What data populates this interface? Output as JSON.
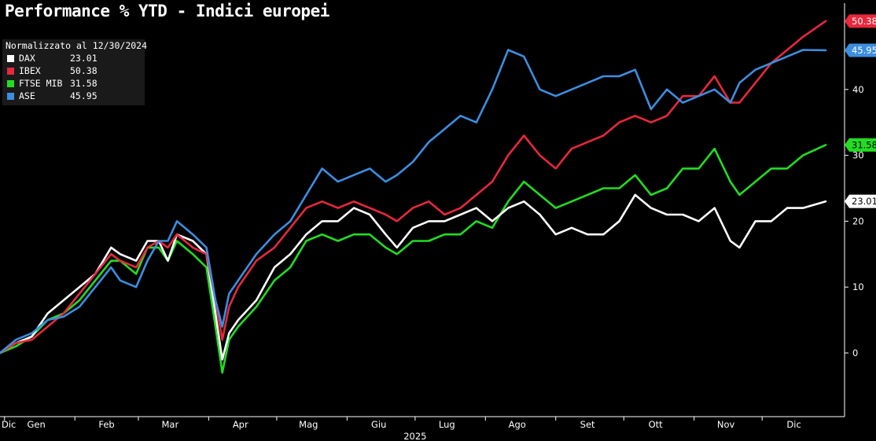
{
  "chart_data": {
    "type": "line",
    "title": "Performance % YTD - Indici europei",
    "note": "Normalizzato al 12/30/2024",
    "x_tick_labels": [
      "Dic",
      "Gen",
      "Feb",
      "Mar",
      "Apr",
      "Mag",
      "Giu",
      "Lug",
      "Ago",
      "Set",
      "Ott",
      "Nov",
      "Dic"
    ],
    "x_year_label": "2025",
    "y_ticks": [
      0,
      10,
      20,
      30,
      40
    ],
    "ylim": [
      -7.5,
      51.5
    ],
    "grid": false,
    "legend_position": "top-left",
    "axis_side": "right",
    "series": [
      {
        "name": "DAX",
        "color": "#ffffff",
        "last": "23.01",
        "points": [
          [
            "2024-12-30",
            0
          ],
          [
            "2025-01-06",
            1.5
          ],
          [
            "2025-01-13",
            2.5
          ],
          [
            "2025-01-20",
            6
          ],
          [
            "2025-01-27",
            8
          ],
          [
            "2025-02-03",
            10
          ],
          [
            "2025-02-10",
            12
          ],
          [
            "2025-02-17",
            16
          ],
          [
            "2025-02-21",
            15
          ],
          [
            "2025-02-28",
            14
          ],
          [
            "2025-03-05",
            17
          ],
          [
            "2025-03-10",
            17
          ],
          [
            "2025-03-14",
            14
          ],
          [
            "2025-03-18",
            18
          ],
          [
            "2025-03-25",
            17
          ],
          [
            "2025-03-31",
            15
          ],
          [
            "2025-04-04",
            6
          ],
          [
            "2025-04-07",
            -1
          ],
          [
            "2025-04-10",
            3
          ],
          [
            "2025-04-14",
            5
          ],
          [
            "2025-04-22",
            8
          ],
          [
            "2025-04-30",
            13
          ],
          [
            "2025-05-07",
            15
          ],
          [
            "2025-05-14",
            18
          ],
          [
            "2025-05-21",
            20
          ],
          [
            "2025-05-28",
            20
          ],
          [
            "2025-06-04",
            22
          ],
          [
            "2025-06-11",
            21
          ],
          [
            "2025-06-18",
            18
          ],
          [
            "2025-06-23",
            16
          ],
          [
            "2025-06-30",
            19
          ],
          [
            "2025-07-07",
            20
          ],
          [
            "2025-07-14",
            20
          ],
          [
            "2025-07-21",
            21
          ],
          [
            "2025-07-28",
            22
          ],
          [
            "2025-08-04",
            20
          ],
          [
            "2025-08-11",
            22
          ],
          [
            "2025-08-18",
            23
          ],
          [
            "2025-08-25",
            21
          ],
          [
            "2025-09-01",
            18
          ],
          [
            "2025-09-08",
            19
          ],
          [
            "2025-09-15",
            18
          ],
          [
            "2025-09-22",
            18
          ],
          [
            "2025-09-29",
            20
          ],
          [
            "2025-10-06",
            24
          ],
          [
            "2025-10-13",
            22
          ],
          [
            "2025-10-20",
            21
          ],
          [
            "2025-10-27",
            21
          ],
          [
            "2025-11-03",
            20
          ],
          [
            "2025-11-10",
            22
          ],
          [
            "2025-11-17",
            17
          ],
          [
            "2025-11-21",
            16
          ],
          [
            "2025-11-28",
            20
          ],
          [
            "2025-12-05",
            20
          ],
          [
            "2025-12-12",
            22
          ],
          [
            "2025-12-19",
            22
          ],
          [
            "2025-12-29",
            23.01
          ]
        ]
      },
      {
        "name": "IBEX",
        "color": "#e8283c",
        "last": "50.38",
        "points": [
          [
            "2024-12-30",
            0
          ],
          [
            "2025-01-06",
            1.5
          ],
          [
            "2025-01-13",
            2
          ],
          [
            "2025-01-20",
            4
          ],
          [
            "2025-01-27",
            6
          ],
          [
            "2025-02-03",
            9
          ],
          [
            "2025-02-10",
            12
          ],
          [
            "2025-02-17",
            15
          ],
          [
            "2025-02-21",
            14
          ],
          [
            "2025-02-28",
            13
          ],
          [
            "2025-03-05",
            16
          ],
          [
            "2025-03-10",
            17
          ],
          [
            "2025-03-14",
            16
          ],
          [
            "2025-03-18",
            18
          ],
          [
            "2025-03-25",
            16
          ],
          [
            "2025-03-31",
            15
          ],
          [
            "2025-04-04",
            8
          ],
          [
            "2025-04-07",
            2
          ],
          [
            "2025-04-10",
            7
          ],
          [
            "2025-04-14",
            10
          ],
          [
            "2025-04-22",
            14
          ],
          [
            "2025-04-30",
            16
          ],
          [
            "2025-05-07",
            19
          ],
          [
            "2025-05-14",
            22
          ],
          [
            "2025-05-21",
            23
          ],
          [
            "2025-05-28",
            22
          ],
          [
            "2025-06-04",
            23
          ],
          [
            "2025-06-11",
            22
          ],
          [
            "2025-06-18",
            21
          ],
          [
            "2025-06-23",
            20
          ],
          [
            "2025-06-30",
            22
          ],
          [
            "2025-07-07",
            23
          ],
          [
            "2025-07-14",
            21
          ],
          [
            "2025-07-21",
            22
          ],
          [
            "2025-07-28",
            24
          ],
          [
            "2025-08-04",
            26
          ],
          [
            "2025-08-11",
            30
          ],
          [
            "2025-08-18",
            33
          ],
          [
            "2025-08-25",
            30
          ],
          [
            "2025-09-01",
            28
          ],
          [
            "2025-09-08",
            31
          ],
          [
            "2025-09-15",
            32
          ],
          [
            "2025-09-22",
            33
          ],
          [
            "2025-09-29",
            35
          ],
          [
            "2025-10-06",
            36
          ],
          [
            "2025-10-13",
            35
          ],
          [
            "2025-10-20",
            36
          ],
          [
            "2025-10-27",
            39
          ],
          [
            "2025-11-03",
            39
          ],
          [
            "2025-11-10",
            42
          ],
          [
            "2025-11-17",
            38
          ],
          [
            "2025-11-21",
            38
          ],
          [
            "2025-11-28",
            41
          ],
          [
            "2025-12-05",
            44
          ],
          [
            "2025-12-12",
            46
          ],
          [
            "2025-12-19",
            48
          ],
          [
            "2025-12-29",
            50.38
          ]
        ]
      },
      {
        "name": "FTSE MIB",
        "color": "#22dd22",
        "last": "31.58",
        "points": [
          [
            "2024-12-30",
            0
          ],
          [
            "2025-01-06",
            1
          ],
          [
            "2025-01-13",
            2.5
          ],
          [
            "2025-01-20",
            5
          ],
          [
            "2025-01-27",
            6
          ],
          [
            "2025-02-03",
            8
          ],
          [
            "2025-02-10",
            11
          ],
          [
            "2025-02-17",
            14
          ],
          [
            "2025-02-21",
            14
          ],
          [
            "2025-02-28",
            12
          ],
          [
            "2025-03-05",
            16
          ],
          [
            "2025-03-10",
            16
          ],
          [
            "2025-03-14",
            14
          ],
          [
            "2025-03-18",
            17
          ],
          [
            "2025-03-25",
            15
          ],
          [
            "2025-03-31",
            13
          ],
          [
            "2025-04-04",
            4
          ],
          [
            "2025-04-07",
            -3
          ],
          [
            "2025-04-10",
            2
          ],
          [
            "2025-04-14",
            4
          ],
          [
            "2025-04-22",
            7
          ],
          [
            "2025-04-30",
            11
          ],
          [
            "2025-05-07",
            13
          ],
          [
            "2025-05-14",
            17
          ],
          [
            "2025-05-21",
            18
          ],
          [
            "2025-05-28",
            17
          ],
          [
            "2025-06-04",
            18
          ],
          [
            "2025-06-11",
            18
          ],
          [
            "2025-06-18",
            16
          ],
          [
            "2025-06-23",
            15
          ],
          [
            "2025-06-30",
            17
          ],
          [
            "2025-07-07",
            17
          ],
          [
            "2025-07-14",
            18
          ],
          [
            "2025-07-21",
            18
          ],
          [
            "2025-07-28",
            20
          ],
          [
            "2025-08-04",
            19
          ],
          [
            "2025-08-11",
            23
          ],
          [
            "2025-08-18",
            26
          ],
          [
            "2025-08-25",
            24
          ],
          [
            "2025-09-01",
            22
          ],
          [
            "2025-09-08",
            23
          ],
          [
            "2025-09-15",
            24
          ],
          [
            "2025-09-22",
            25
          ],
          [
            "2025-09-29",
            25
          ],
          [
            "2025-10-06",
            27
          ],
          [
            "2025-10-13",
            24
          ],
          [
            "2025-10-20",
            25
          ],
          [
            "2025-10-27",
            28
          ],
          [
            "2025-11-03",
            28
          ],
          [
            "2025-11-10",
            31
          ],
          [
            "2025-11-17",
            26
          ],
          [
            "2025-11-21",
            24
          ],
          [
            "2025-11-28",
            26
          ],
          [
            "2025-12-05",
            28
          ],
          [
            "2025-12-12",
            28
          ],
          [
            "2025-12-19",
            30
          ],
          [
            "2025-12-29",
            31.58
          ]
        ]
      },
      {
        "name": "ASE",
        "color": "#3d8ee0",
        "last": "45.95",
        "points": [
          [
            "2024-12-30",
            0
          ],
          [
            "2025-01-06",
            2
          ],
          [
            "2025-01-13",
            3
          ],
          [
            "2025-01-20",
            5
          ],
          [
            "2025-01-27",
            5.5
          ],
          [
            "2025-02-03",
            7
          ],
          [
            "2025-02-10",
            10
          ],
          [
            "2025-02-17",
            13
          ],
          [
            "2025-02-21",
            11
          ],
          [
            "2025-02-28",
            10
          ],
          [
            "2025-03-05",
            14
          ],
          [
            "2025-03-10",
            17
          ],
          [
            "2025-03-14",
            17
          ],
          [
            "2025-03-18",
            20
          ],
          [
            "2025-03-25",
            18
          ],
          [
            "2025-03-31",
            16
          ],
          [
            "2025-04-04",
            8
          ],
          [
            "2025-04-07",
            4
          ],
          [
            "2025-04-10",
            9
          ],
          [
            "2025-04-14",
            11
          ],
          [
            "2025-04-22",
            15
          ],
          [
            "2025-04-30",
            18
          ],
          [
            "2025-05-07",
            20
          ],
          [
            "2025-05-14",
            24
          ],
          [
            "2025-05-21",
            28
          ],
          [
            "2025-05-28",
            26
          ],
          [
            "2025-06-04",
            27
          ],
          [
            "2025-06-11",
            28
          ],
          [
            "2025-06-18",
            26
          ],
          [
            "2025-06-23",
            27
          ],
          [
            "2025-06-30",
            29
          ],
          [
            "2025-07-07",
            32
          ],
          [
            "2025-07-14",
            34
          ],
          [
            "2025-07-21",
            36
          ],
          [
            "2025-07-28",
            35
          ],
          [
            "2025-08-04",
            40
          ],
          [
            "2025-08-11",
            46
          ],
          [
            "2025-08-18",
            45
          ],
          [
            "2025-08-25",
            40
          ],
          [
            "2025-09-01",
            39
          ],
          [
            "2025-09-08",
            40
          ],
          [
            "2025-09-15",
            41
          ],
          [
            "2025-09-22",
            42
          ],
          [
            "2025-09-29",
            42
          ],
          [
            "2025-10-06",
            43
          ],
          [
            "2025-10-13",
            37
          ],
          [
            "2025-10-20",
            40
          ],
          [
            "2025-10-27",
            38
          ],
          [
            "2025-11-03",
            39
          ],
          [
            "2025-11-10",
            40
          ],
          [
            "2025-11-17",
            38
          ],
          [
            "2025-11-21",
            41
          ],
          [
            "2025-11-28",
            43
          ],
          [
            "2025-12-05",
            44
          ],
          [
            "2025-12-12",
            45
          ],
          [
            "2025-12-19",
            46
          ],
          [
            "2025-12-29",
            45.95
          ]
        ]
      }
    ]
  }
}
